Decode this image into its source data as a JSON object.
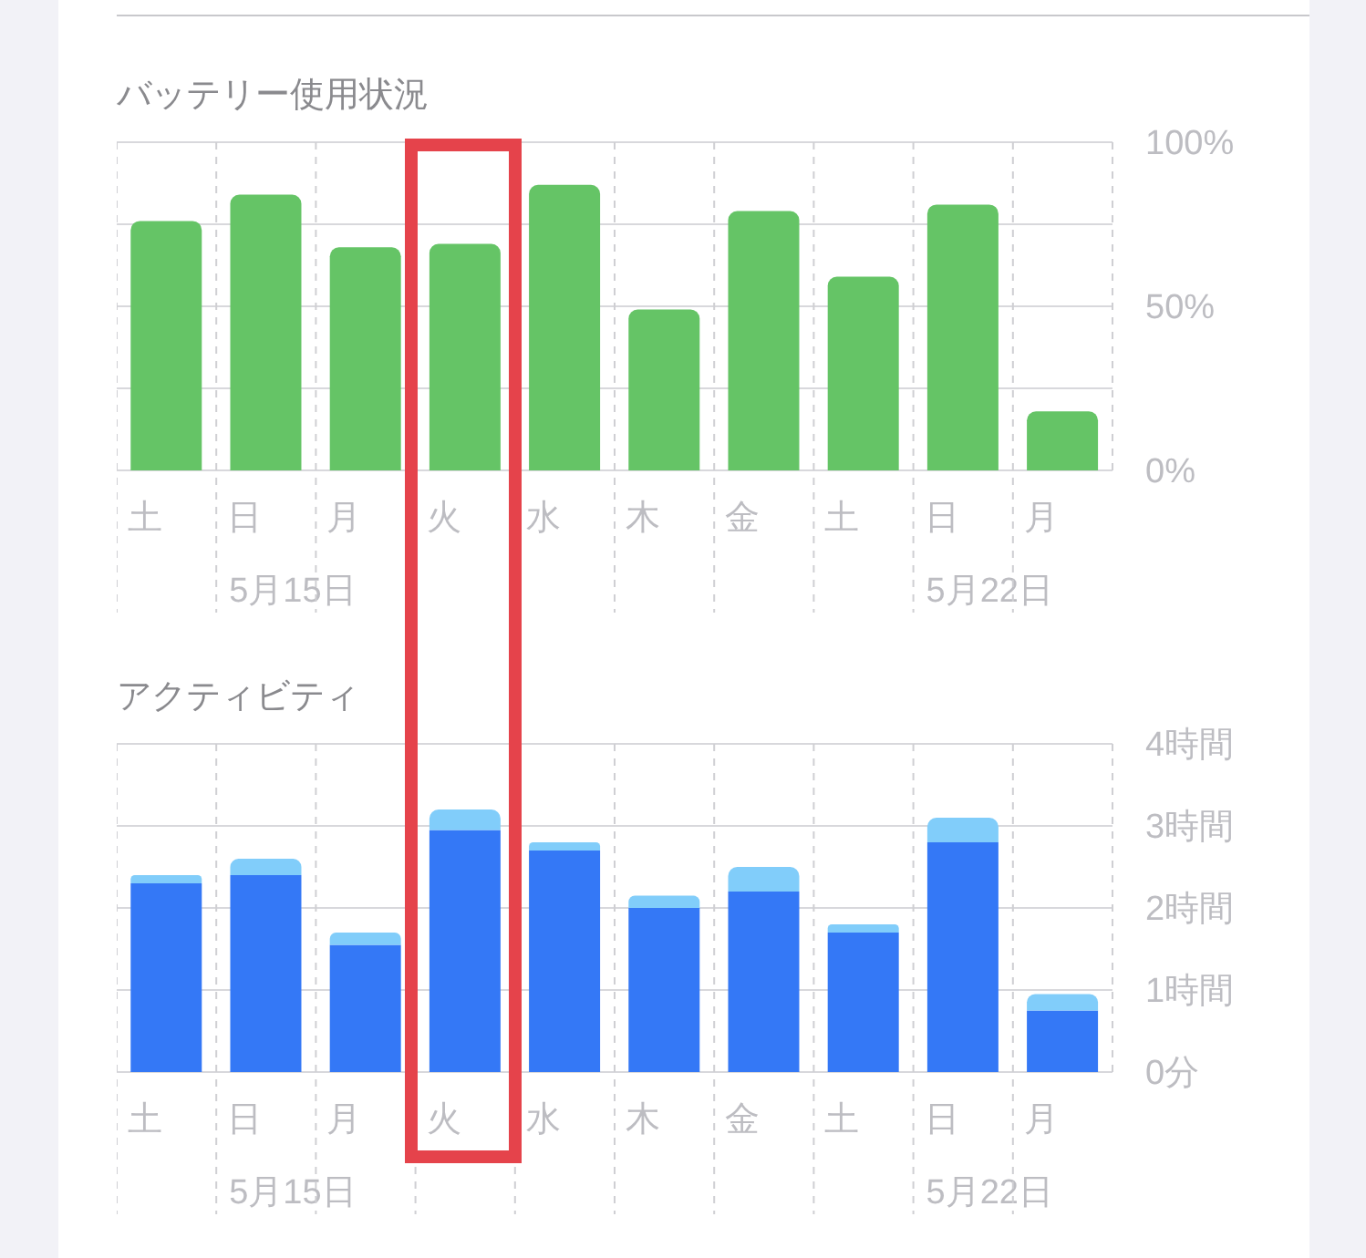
{
  "chart_data": [
    {
      "type": "bar",
      "title": "バッテリー使用状況",
      "categories": [
        "土",
        "日\n5月15日",
        "月",
        "火",
        "水",
        "木",
        "金",
        "土",
        "日\n5月22日",
        "月"
      ],
      "values": [
        76,
        84,
        68,
        69,
        87,
        49,
        79,
        59,
        81,
        18
      ],
      "color": "#65c466",
      "ylim": [
        0,
        100
      ],
      "yticks": [
        {
          "value": 0,
          "label": "0%"
        },
        {
          "value": 25,
          "label": null
        },
        {
          "value": 50,
          "label": "50%"
        },
        {
          "value": 75,
          "label": null
        },
        {
          "value": 100,
          "label": "100%"
        }
      ],
      "grid": "y"
    },
    {
      "type": "bar",
      "title": "アクティビティ",
      "categories": [
        "土",
        "日\n5月15日",
        "月",
        "火",
        "水",
        "木",
        "金",
        "土",
        "日\n5月22日",
        "月"
      ],
      "stacked": true,
      "series": [
        {
          "color": "#3478f6",
          "values": [
            2.3,
            2.4,
            1.55,
            2.95,
            2.7,
            2.0,
            2.2,
            1.7,
            2.8,
            0.75
          ]
        },
        {
          "color": "#81cdfa",
          "values": [
            0.1,
            0.2,
            0.15,
            0.25,
            0.1,
            0.15,
            0.3,
            0.1,
            0.3,
            0.2
          ]
        }
      ],
      "ylim": [
        0,
        4
      ],
      "yticks": [
        {
          "value": 0,
          "label": "0分"
        },
        {
          "value": 1,
          "label": "1時間"
        },
        {
          "value": 2,
          "label": "2時間"
        },
        {
          "value": 3,
          "label": "3時間"
        },
        {
          "value": 4,
          "label": "4時間"
        }
      ],
      "grid": "y"
    }
  ]
}
